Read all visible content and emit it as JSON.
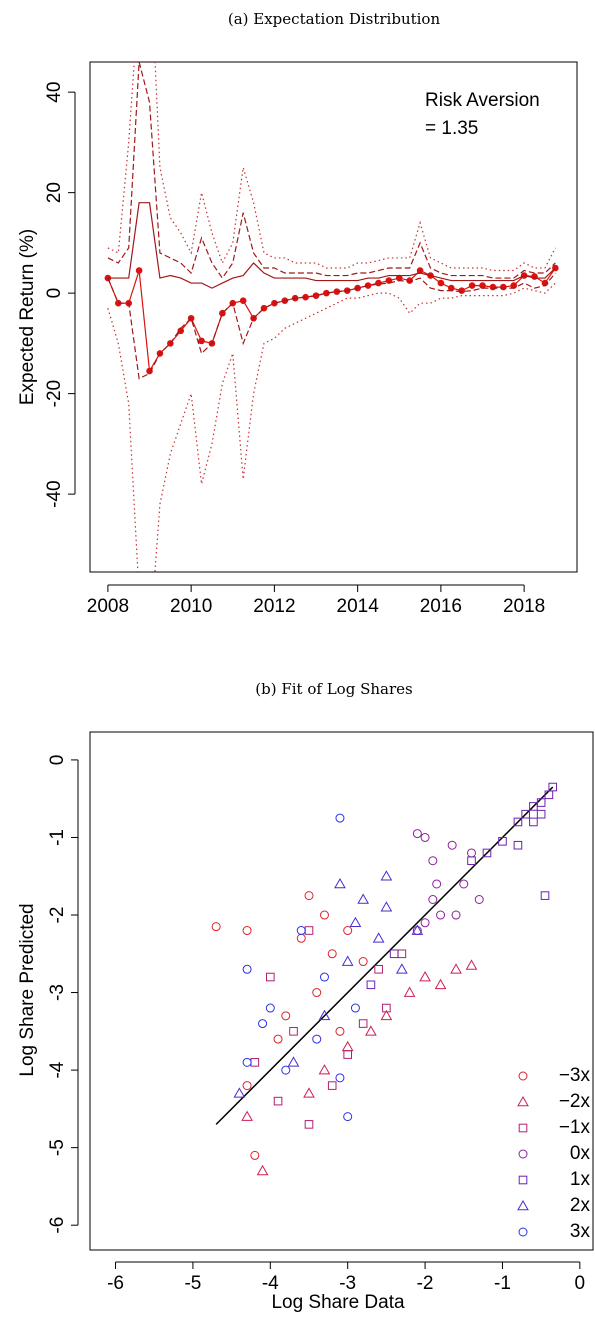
{
  "chart_data": [
    {
      "type": "line",
      "title": "(a) Expectation Distribution",
      "ylabel": "Expected Return (%)",
      "annotations": [
        "Risk Aversion",
        "= 1.35"
      ],
      "x": [
        2008,
        2008.25,
        2008.5,
        2008.75,
        2009,
        2009.25,
        2009.5,
        2009.75,
        2010,
        2010.25,
        2010.5,
        2010.75,
        2011,
        2011.25,
        2011.5,
        2011.75,
        2012,
        2012.25,
        2012.5,
        2012.75,
        2013,
        2013.25,
        2013.5,
        2013.75,
        2014,
        2014.25,
        2014.5,
        2014.75,
        2015,
        2015.25,
        2015.5,
        2015.75,
        2016,
        2016.25,
        2016.5,
        2016.75,
        2017,
        2017.25,
        2017.5,
        2017.75,
        2018,
        2018.25,
        2018.5,
        2018.75
      ],
      "series": [
        {
          "color": "#dd1111",
          "style": "solid",
          "markers": true,
          "values": [
            3,
            -2,
            -2,
            4.5,
            -15.5,
            -12,
            -10,
            -7.5,
            -5,
            -9.5,
            -10,
            -4,
            -2,
            -1.5,
            -5,
            -3,
            -2,
            -1.5,
            -1,
            -0.8,
            -0.5,
            0,
            0.3,
            0.5,
            1,
            1.5,
            2,
            2.5,
            3,
            2.5,
            4.5,
            3.5,
            2,
            1,
            0.5,
            1.5,
            1.5,
            1.2,
            1.2,
            1.5,
            3.5,
            3.3,
            2,
            5
          ]
        },
        {
          "color": "#a01818",
          "style": "solid",
          "markers": false,
          "values": [
            3,
            3,
            3,
            18,
            18,
            3,
            3.5,
            3,
            2,
            2,
            1,
            2,
            3,
            3.5,
            6,
            4,
            3,
            3,
            3,
            3,
            2.5,
            2.5,
            2.5,
            2.5,
            2.5,
            3,
            3,
            3.5,
            3.5,
            3.5,
            4,
            3.5,
            3,
            2.5,
            2.5,
            2.5,
            2.5,
            2.5,
            2.5,
            2.5,
            3.5,
            3,
            3,
            5
          ]
        },
        {
          "color": "#a01818",
          "style": "dashed",
          "markers": false,
          "values": [
            7,
            6,
            9,
            46,
            38,
            8,
            7,
            6,
            4,
            11,
            6,
            3,
            6,
            16,
            8,
            5,
            5,
            4,
            4,
            4,
            4,
            3.5,
            3.5,
            3.5,
            4,
            4,
            4.5,
            5,
            5,
            5,
            10,
            5,
            4,
            3.5,
            3.5,
            3.5,
            3.5,
            3,
            3,
            3,
            4.5,
            4,
            4,
            6
          ]
        },
        {
          "color": "#a01818",
          "style": "dashed",
          "markers": false,
          "values": [
            3,
            -2,
            -2,
            -17,
            -16,
            -12,
            -10,
            -7,
            -5,
            -12,
            -10,
            -4,
            -2,
            -10,
            -5,
            -3,
            -2,
            -1.5,
            -1,
            -0.8,
            -0.5,
            0,
            0.3,
            0.5,
            1,
            1.5,
            1.8,
            2,
            2.5,
            2.3,
            3,
            1,
            0.5,
            0.5,
            0.3,
            0.5,
            1,
            1,
            1,
            1,
            2,
            1,
            1.5,
            4
          ]
        },
        {
          "color": "#c83030",
          "style": "dotted",
          "markers": false,
          "values": [
            9,
            8,
            30,
            60,
            70,
            25,
            15,
            12,
            8,
            20,
            12,
            6,
            10,
            25,
            18,
            8,
            7,
            7,
            6,
            6,
            6,
            5,
            5,
            5,
            6,
            6,
            6.5,
            7,
            7,
            7,
            14,
            7,
            6,
            5,
            5,
            5,
            5,
            4.5,
            4.5,
            4.5,
            6,
            5,
            5,
            9
          ]
        },
        {
          "color": "#c83030",
          "style": "dotted",
          "markers": false,
          "values": [
            -3,
            -10,
            -22,
            -60,
            -70,
            -42,
            -32,
            -26,
            -20,
            -38,
            -30,
            -18,
            -12,
            -37,
            -20,
            -10,
            -9,
            -7,
            -6,
            -5,
            -4,
            -3,
            -2,
            -1,
            -1,
            -0.5,
            0,
            0,
            -1,
            -4,
            -2,
            -2,
            -1,
            -1,
            -0.5,
            -0.5,
            -0.5,
            -0.5,
            -0.5,
            0,
            1,
            0.5,
            0,
            2
          ]
        }
      ],
      "xlim": [
        2007.57,
        2019.27
      ],
      "xticks": [
        2008,
        2010,
        2012,
        2014,
        2016,
        2018
      ],
      "ylim": [
        -55.5,
        46
      ],
      "yticks": [
        -40,
        -20,
        0,
        20,
        40
      ]
    },
    {
      "type": "scatter",
      "title": "(b) Fit of Log Shares",
      "xlabel": "Log Share Data",
      "ylabel": "Log Share Predicted",
      "legend": "lower right",
      "reference_line": {
        "color": "#000000",
        "x": [
          -4.7,
          -0.35
        ],
        "y": [
          -4.7,
          -0.35
        ]
      },
      "series": [
        {
          "name": "−3x",
          "color": "#e0202a",
          "marker": "circle",
          "x": [
            -4.7,
            -4.3,
            -3.5,
            -3.3,
            -3.6,
            -3.2,
            -3.0,
            -3.8,
            -3.4,
            -4.3,
            -4.2,
            -3.9,
            -3.1,
            -2.8
          ],
          "y": [
            -2.15,
            -2.2,
            -1.75,
            -2.0,
            -2.3,
            -2.5,
            -2.2,
            -3.3,
            -3.0,
            -4.2,
            -5.1,
            -3.6,
            -3.5,
            -2.6
          ]
        },
        {
          "name": "−2x",
          "color": "#cc2050",
          "marker": "triangle",
          "x": [
            -2.0,
            -1.6,
            -1.4,
            -2.5,
            -2.2,
            -3.0,
            -3.3,
            -4.1,
            -4.3,
            -3.5,
            -2.7,
            -1.8
          ],
          "y": [
            -2.8,
            -2.7,
            -2.65,
            -3.3,
            -3.0,
            -3.7,
            -4.0,
            -5.3,
            -4.6,
            -4.3,
            -3.5,
            -2.9
          ]
        },
        {
          "name": "−1x",
          "color": "#b02070",
          "marker": "square",
          "x": [
            -3.5,
            -4.0,
            -3.7,
            -3.0,
            -2.8,
            -2.5,
            -3.9,
            -3.5,
            -3.2,
            -2.6,
            -2.3,
            -4.2
          ],
          "y": [
            -2.2,
            -2.8,
            -3.5,
            -3.8,
            -3.4,
            -3.2,
            -4.4,
            -4.7,
            -4.2,
            -2.7,
            -2.5,
            -3.9
          ]
        },
        {
          "name": "0x",
          "color": "#8c1f9a",
          "marker": "circle",
          "x": [
            -2.0,
            -1.9,
            -1.85,
            -1.9,
            -1.8,
            -2.0,
            -2.1,
            -1.5,
            -1.3,
            -1.4,
            -1.65,
            -2.1,
            -1.6
          ],
          "y": [
            -1.0,
            -1.3,
            -1.6,
            -1.8,
            -2.0,
            -2.1,
            -2.2,
            -1.6,
            -1.8,
            -1.2,
            -1.1,
            -0.95,
            -2.0
          ]
        },
        {
          "name": "1x",
          "color": "#6a22b0",
          "marker": "square",
          "x": [
            -0.35,
            -0.4,
            -0.5,
            -0.6,
            -0.7,
            -0.8,
            -1.0,
            -1.2,
            -1.4,
            -0.5,
            -0.8,
            -0.6,
            -0.45,
            -2.4,
            -2.7
          ],
          "y": [
            -0.35,
            -0.45,
            -0.55,
            -0.6,
            -0.7,
            -0.8,
            -1.05,
            -1.2,
            -1.3,
            -0.7,
            -1.1,
            -0.8,
            -1.75,
            -2.5,
            -2.9
          ]
        },
        {
          "name": "2x",
          "color": "#4a2ad0",
          "marker": "triangle",
          "x": [
            -3.1,
            -2.8,
            -2.5,
            -2.9,
            -2.6,
            -2.3,
            -3.0,
            -3.3,
            -3.7,
            -4.4,
            -2.5,
            -2.1
          ],
          "y": [
            -1.6,
            -1.8,
            -1.9,
            -2.1,
            -2.3,
            -2.7,
            -2.6,
            -3.3,
            -3.9,
            -4.3,
            -1.5,
            -2.2
          ]
        },
        {
          "name": "3x",
          "color": "#2a30e8",
          "marker": "circle",
          "x": [
            -3.1,
            -4.3,
            -4.0,
            -3.6,
            -3.4,
            -3.8,
            -4.3,
            -3.1,
            -3.0,
            -2.9,
            -3.3,
            -4.1
          ],
          "y": [
            -0.75,
            -2.7,
            -3.2,
            -2.2,
            -3.6,
            -4.0,
            -3.9,
            -4.1,
            -4.6,
            -3.2,
            -2.8,
            -3.4
          ]
        }
      ],
      "xlim": [
        -6.33,
        0.17
      ],
      "xticks": [
        -6,
        -5,
        -4,
        -3,
        -2,
        -1,
        0
      ],
      "ylim": [
        -6.32,
        0.36
      ],
      "yticks": [
        -6,
        -5,
        -4,
        -3,
        -2,
        -1,
        0
      ]
    }
  ]
}
